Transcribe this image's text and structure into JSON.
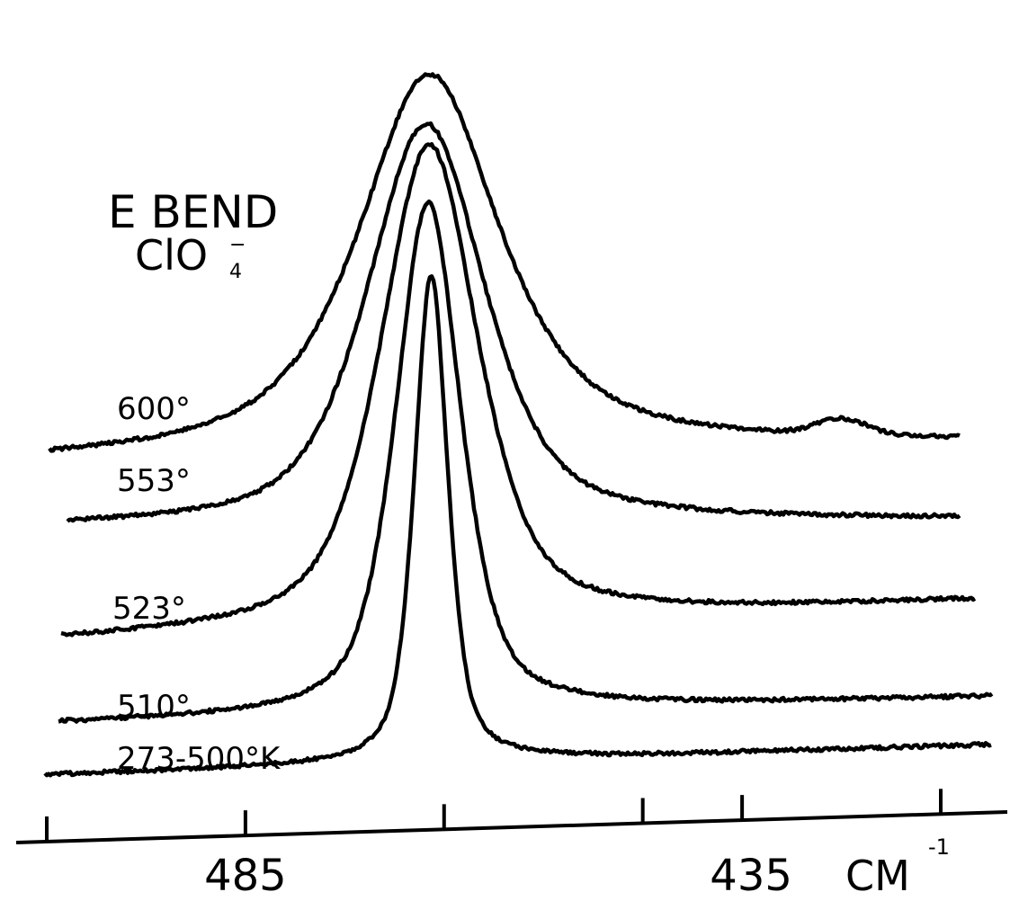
{
  "chart_data": {
    "type": "line",
    "title": "E BEND",
    "subtitle_main": "ClO",
    "subtitle_sub": "4",
    "subtitle_sup": "−",
    "x_unit_label": "CM",
    "x_unit_exp": "-1",
    "x_ticks": [
      {
        "value": 505,
        "label": ""
      },
      {
        "value": 485,
        "label": "485"
      },
      {
        "value": 465,
        "label": ""
      },
      {
        "value": 445,
        "label": ""
      },
      {
        "value": 435,
        "label": "435"
      },
      {
        "value": 415,
        "label": ""
      }
    ],
    "x_range": [
      505,
      415
    ],
    "x_direction": "decreasing",
    "y_axis_visible": false,
    "grid": false,
    "legend": "labels beside curves",
    "series": [
      {
        "name": "600°",
        "baseline": 0.8,
        "peak_height": 0.92,
        "center": 466.5,
        "hwhm": 8.5,
        "right_level": 0.95,
        "shoulder": true
      },
      {
        "name": "553°",
        "baseline": 0.62,
        "peak_height": 0.93,
        "center": 466.8,
        "hwhm": 7.0,
        "right_level": 0.63
      },
      {
        "name": "523°",
        "baseline": 0.35,
        "peak_height": 0.98,
        "center": 466.5,
        "hwhm": 5.8,
        "right_level": 0.4
      },
      {
        "name": "510°",
        "baseline": 0.07,
        "peak_height": 1.06,
        "center": 466.6,
        "hwhm": 3.9,
        "right_level": 0.12
      },
      {
        "name": "273-500°K",
        "baseline": 0.0,
        "peak_height": 0.93,
        "center": 466.3,
        "hwhm": 2.0,
        "right_level": 0.04
      }
    ]
  }
}
